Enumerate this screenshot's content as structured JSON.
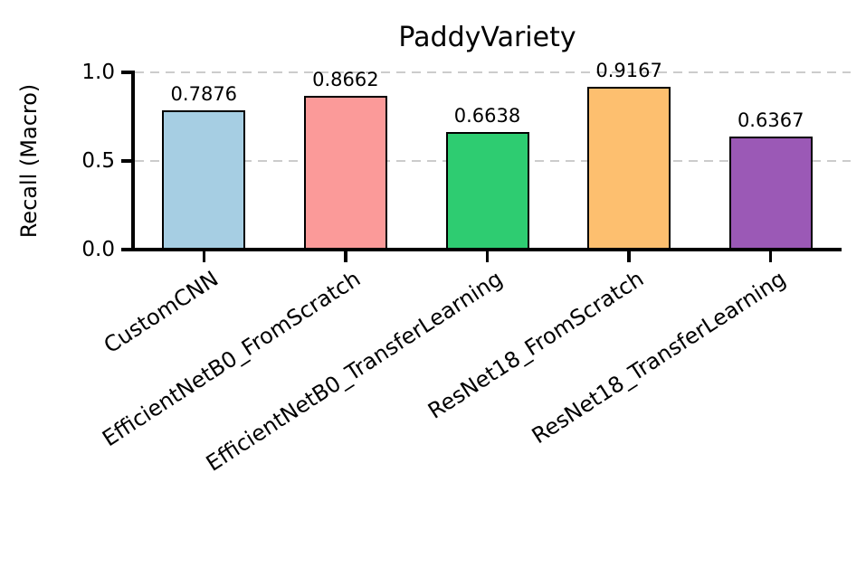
{
  "chart_data": {
    "type": "bar",
    "title": "PaddyVariety",
    "xlabel": "",
    "ylabel": "Recall (Macro)",
    "categories": [
      "CustomCNN",
      "EfficientNetB0_FromScratch",
      "EfficientNetB0_TransferLearning",
      "ResNet18_FromScratch",
      "ResNet18_TransferLearning"
    ],
    "values": [
      0.7876,
      0.8662,
      0.6638,
      0.9167,
      0.6367
    ],
    "value_labels": [
      "0.7876",
      "0.8662",
      "0.6638",
      "0.9167",
      "0.6367"
    ],
    "bar_colors": [
      "#A6CEE3",
      "#FB9A99",
      "#2ECC71",
      "#FDBF6F",
      "#9B59B6"
    ],
    "bar_edge_color": "#000000",
    "ylim": [
      0.0,
      1.0
    ],
    "yticks": [
      0.0,
      0.5,
      1.0
    ],
    "ytick_labels": [
      "0.0",
      "0.5",
      "1.0"
    ],
    "x_tick_label_rotation_deg": 45,
    "grid": "horizontal dashed gridlines at y ticks",
    "grid_color": "#cccccc",
    "background_color": "#ffffff",
    "text_color": "#000000",
    "legend": "none"
  }
}
